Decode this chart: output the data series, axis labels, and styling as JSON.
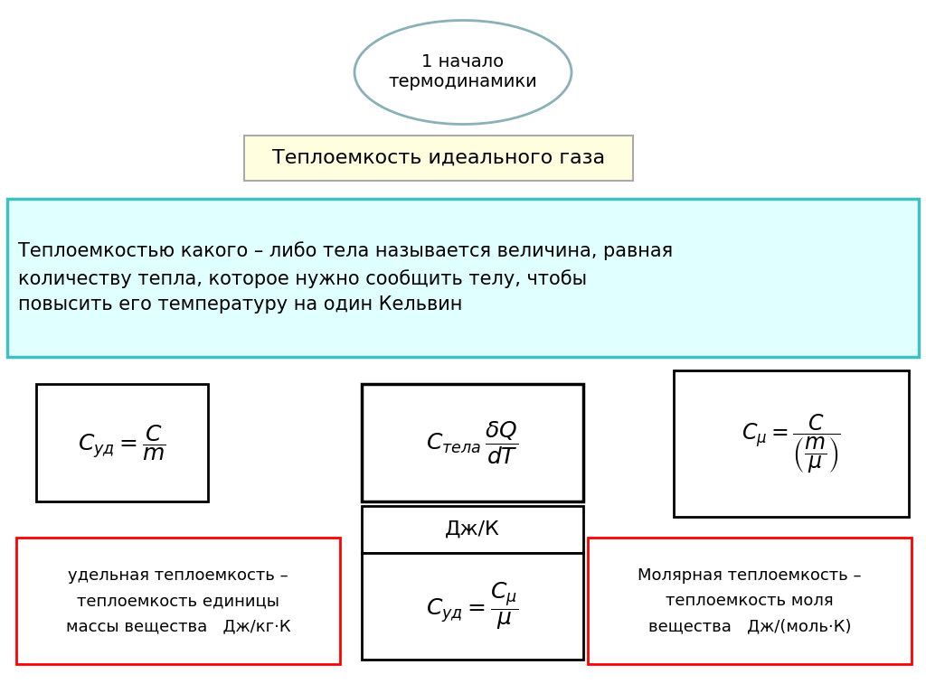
{
  "bg_color": "#ffffff",
  "ellipse_text": "1 начало\nтермодинамики",
  "ellipse_color": "#ffffff",
  "ellipse_edge": "#8ab0b8",
  "yellow_box_text": "Теплоемкость идеального газа",
  "yellow_box_color": "#ffffe0",
  "yellow_box_edge": "#aaaaaa",
  "cyan_box_text": "Теплоемкостью какого – либо тела называется величина, равная\nколичеству тепла, которое нужно сообщить телу, чтобы\nповысить его температуру на один Кельвин",
  "cyan_box_color": "#e0ffff",
  "cyan_box_edge": "#40c0c0",
  "formula1_edge": "#000000",
  "formula2_edge": "#000000",
  "formula3_edge": "#000000",
  "djk_text": "Дж/К",
  "djk_edge": "#000000",
  "formula4_edge": "#000000",
  "red_box1_text": "удельная теплоемкость –\nтеплоемкость единицы\nмассы вещества   Дж/кг·К",
  "red_box1_edge": "#ff0000",
  "red_box2_text": "Молярная теплоемкость –\nтеплоемкость моля\nвещества   Дж/(моль·К)",
  "red_box2_edge": "#ff0000",
  "fig_width": 10.24,
  "fig_height": 7.67,
  "dpi": 100
}
